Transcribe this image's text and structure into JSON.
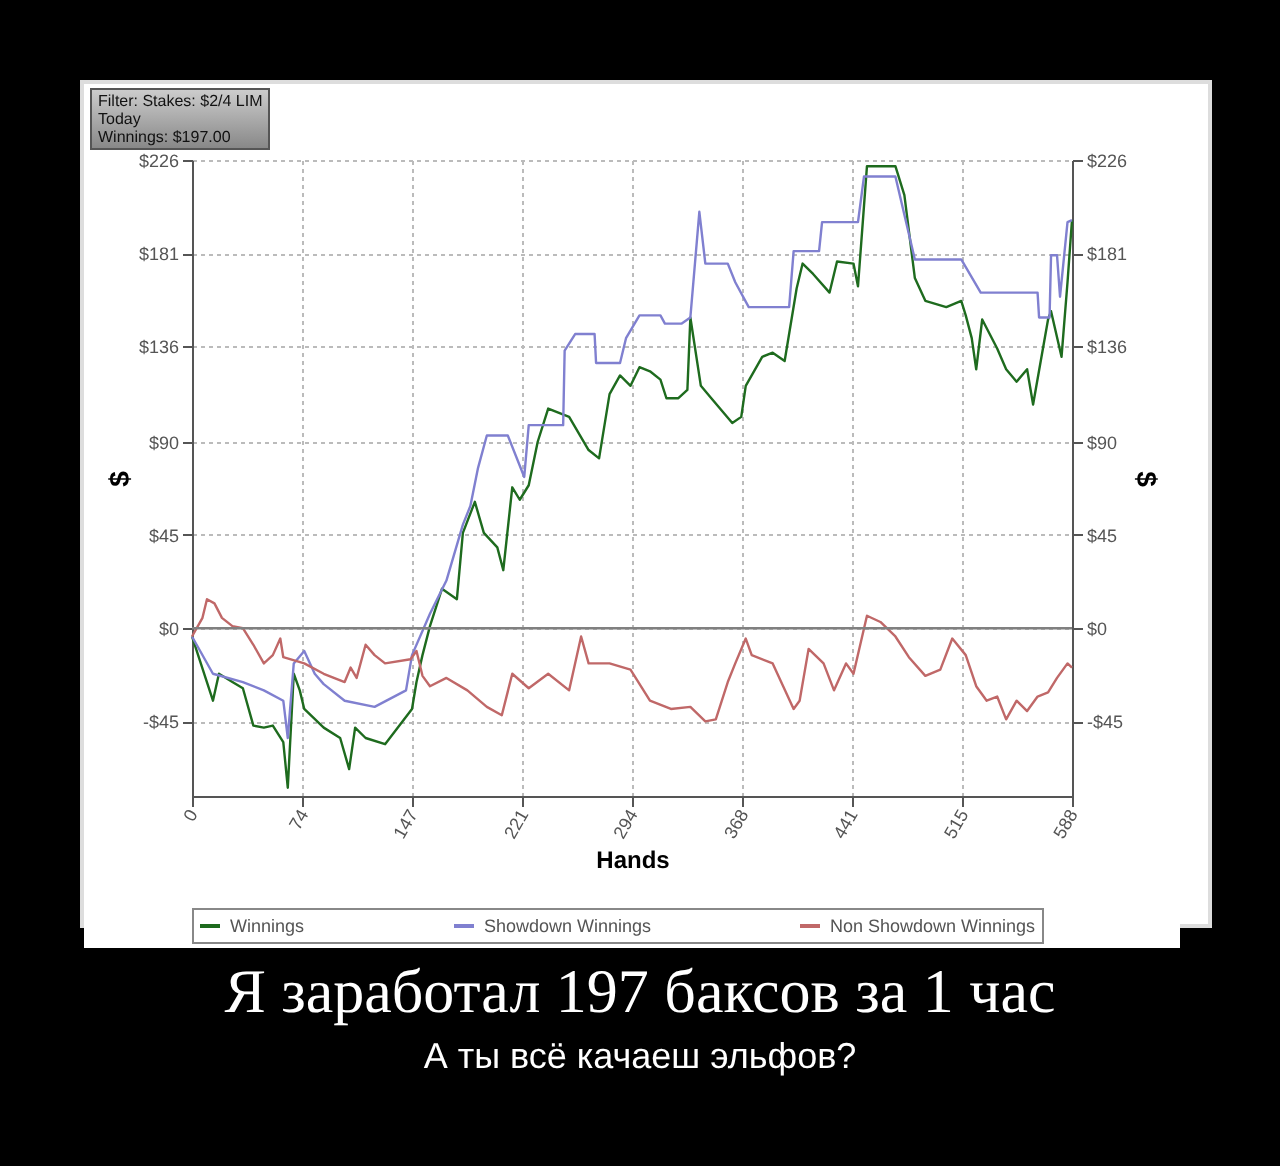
{
  "chart_data": {
    "type": "line",
    "title": "Я заработал 197 баксов за 1 час",
    "subtitle": "А ты всё качаеш эльфов?",
    "xlabel": "Hands",
    "ylabel": "$",
    "y2label": "$",
    "annotations": [
      "Filter: Stakes: $2/4 LIM",
      "Today",
      "Winnings: $197.00"
    ],
    "xlim": [
      0,
      588
    ],
    "xticks": [
      0,
      74,
      147,
      221,
      294,
      368,
      441,
      515,
      588
    ],
    "ylim": [
      -81,
      226
    ],
    "yticks": [
      {
        "value": -45,
        "label": "-$45"
      },
      {
        "value": 0,
        "label": "$0"
      },
      {
        "value": 45,
        "label": "$45"
      },
      {
        "value": 90,
        "label": "$90"
      },
      {
        "value": 136,
        "label": "$136"
      },
      {
        "value": 181,
        "label": "$181"
      },
      {
        "value": 226,
        "label": "$226"
      }
    ],
    "y2lim": [
      -81,
      226
    ],
    "y2ticks": [
      {
        "value": -45,
        "label": "-$45"
      },
      {
        "value": 0,
        "label": "$0"
      },
      {
        "value": 45,
        "label": "$45"
      },
      {
        "value": 90,
        "label": "$90"
      },
      {
        "value": 136,
        "label": "$136"
      },
      {
        "value": 181,
        "label": "$181"
      },
      {
        "value": 226,
        "label": "$226"
      }
    ],
    "grid": true,
    "legend": "bottom",
    "ref_lines": [
      {
        "axis": "y2",
        "value": 0,
        "color": "#808080"
      }
    ],
    "series": [
      {
        "name": "Winnings",
        "color": "#1e6b1e",
        "x": [
          0,
          14,
          18,
          27,
          34,
          41,
          48,
          54,
          61,
          64,
          68,
          72,
          75,
          88,
          99,
          105,
          109,
          116,
          129,
          147,
          150,
          154,
          159,
          167,
          177,
          181,
          189,
          195,
          204,
          208,
          214,
          219,
          225,
          231,
          238,
          252,
          265,
          272,
          279,
          286,
          293,
          299,
          306,
          313,
          317,
          325,
          331,
          333,
          340,
          347,
          361,
          367,
          370,
          381,
          388,
          396,
          404,
          408,
          415,
          426,
          431,
          442,
          445,
          451,
          470,
          476,
          483,
          490,
          504,
          514,
          517,
          521,
          524,
          528,
          538,
          544,
          551,
          558,
          562,
          572,
          574,
          581,
          585,
          588
        ],
        "values": [
          -4,
          -35,
          -22,
          -26,
          -29,
          -47,
          -48,
          -47,
          -55,
          -77,
          -22,
          -30,
          -39,
          -48,
          -53,
          -68,
          -48,
          -53,
          -56,
          -39,
          -26,
          -13,
          1,
          19,
          14,
          46,
          61,
          46,
          39,
          28,
          68,
          62,
          69,
          90,
          106,
          102,
          86,
          82,
          113,
          122,
          117,
          126,
          124,
          120,
          111,
          111,
          115,
          150,
          117,
          111,
          99,
          102,
          117,
          131,
          133,
          129,
          164,
          176,
          171,
          162,
          177,
          176,
          165,
          223,
          223,
          209,
          169,
          158,
          155,
          158,
          151,
          140,
          125,
          149,
          135,
          125,
          119,
          125,
          108,
          149,
          153,
          131,
          167,
          197
        ]
      },
      {
        "name": "Showdown Winnings",
        "color": "#8080d0",
        "x": [
          0,
          14,
          34,
          48,
          61,
          64,
          68,
          75,
          82,
          88,
          102,
          122,
          143,
          147,
          159,
          170,
          181,
          186,
          191,
          197,
          211,
          222,
          225,
          248,
          249,
          256,
          269,
          270,
          286,
          290,
          299,
          313,
          316,
          327,
          333,
          339,
          343,
          358,
          363,
          372,
          399,
          402,
          419,
          421,
          445,
          449,
          470,
          483,
          514,
          527,
          565,
          566,
          573,
          574,
          578,
          580,
          585,
          588
        ],
        "values": [
          -4,
          -22,
          -26,
          -30,
          -35,
          -53,
          -17,
          -11,
          -22,
          -27,
          -35,
          -38,
          -30,
          -13,
          7,
          23,
          50,
          59,
          77,
          93,
          93,
          73,
          98,
          98,
          134,
          142,
          142,
          128,
          128,
          140,
          151,
          151,
          147,
          147,
          150,
          201,
          176,
          176,
          167,
          155,
          155,
          182,
          182,
          196,
          196,
          218,
          218,
          178,
          178,
          162,
          162,
          150,
          150,
          180,
          180,
          160,
          196,
          197
        ]
      },
      {
        "name": "Non Showdown Winnings",
        "color": "#c06868",
        "x": [
          0,
          7,
          10,
          15,
          20,
          27,
          34,
          41,
          48,
          54,
          59,
          61,
          75,
          88,
          102,
          106,
          110,
          116,
          122,
          129,
          146,
          150,
          154,
          159,
          170,
          184,
          197,
          207,
          214,
          225,
          238,
          252,
          260,
          265,
          279,
          293,
          306,
          320,
          333,
          343,
          350,
          358,
          363,
          370,
          374,
          388,
          395,
          402,
          406,
          412,
          422,
          429,
          437,
          442,
          451,
          460,
          470,
          479,
          490,
          500,
          508,
          517,
          524,
          531,
          538,
          544,
          551,
          558,
          565,
          572,
          578,
          585,
          588
        ],
        "values": [
          -4,
          5,
          14,
          12,
          5,
          1,
          0,
          -8,
          -17,
          -13,
          -5,
          -14,
          -17,
          -22,
          -26,
          -19,
          -24,
          -8,
          -13,
          -17,
          -15,
          -11,
          -23,
          -28,
          -24,
          -30,
          -38,
          -42,
          -22,
          -29,
          -22,
          -30,
          -4,
          -17,
          -17,
          -20,
          -35,
          -39,
          -38,
          -45,
          -44,
          -26,
          -17,
          -5,
          -13,
          -17,
          -28,
          -39,
          -35,
          -10,
          -17,
          -30,
          -17,
          -22,
          6,
          3,
          -4,
          -14,
          -23,
          -20,
          -5,
          -13,
          -28,
          -35,
          -33,
          -44,
          -35,
          -40,
          -33,
          -31,
          -24,
          -17,
          -19
        ]
      }
    ]
  }
}
